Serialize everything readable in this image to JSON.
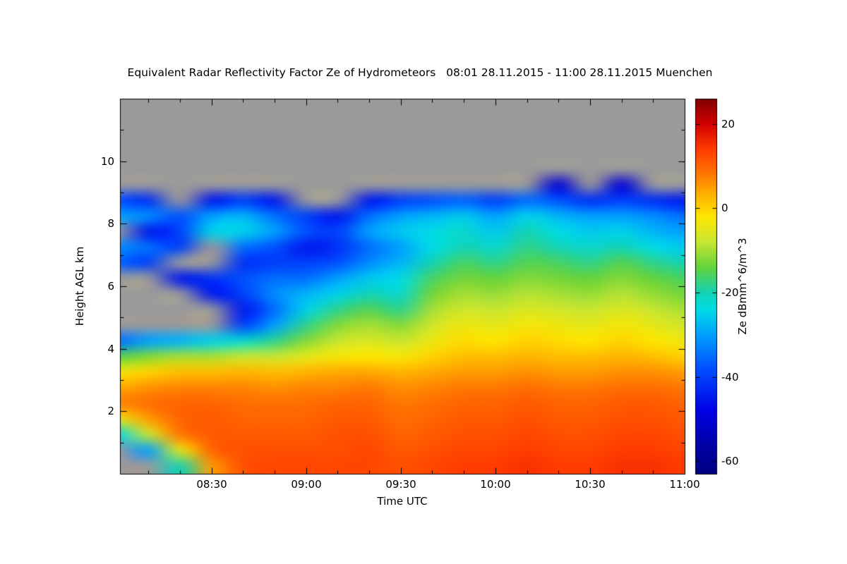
{
  "chart_data": {
    "type": "heatmap",
    "title": "Equivalent Radar Reflectivity Factor Ze of Hydrometeors   08:01 28.11.2015 - 11:00 28.11.2015 Muenchen",
    "xlabel": "Time UTC",
    "ylabel": "Height AGL km",
    "x_ticks": [
      "08:30",
      "09:00",
      "09:30",
      "10:00",
      "10:30",
      "11:00"
    ],
    "x_tick_minutes": [
      30,
      60,
      90,
      120,
      150,
      180
    ],
    "x_range_minutes": [
      1,
      180
    ],
    "y_ticks": [
      2,
      4,
      6,
      8,
      10
    ],
    "y_range_km": [
      0,
      12
    ],
    "grid": "off",
    "no_data_color": "#9a9a9a",
    "time_minutes": [
      0,
      10,
      20,
      30,
      40,
      50,
      60,
      70,
      80,
      90,
      100,
      110,
      120,
      130,
      140,
      150,
      160,
      170,
      180
    ],
    "heights_km": [
      11.75,
      11.25,
      10.75,
      10.25,
      9.75,
      9.25,
      8.75,
      8.25,
      7.75,
      7.25,
      6.75,
      6.25,
      5.75,
      5.25,
      4.75,
      4.25,
      3.75,
      3.25,
      2.75,
      2.25,
      1.75,
      1.25,
      0.75,
      0.25
    ],
    "values_dbz": [
      [
        null,
        null,
        null,
        null,
        null,
        null,
        null,
        null,
        null,
        null,
        null,
        null,
        null,
        null,
        null,
        null,
        null,
        null,
        null
      ],
      [
        null,
        null,
        null,
        null,
        null,
        null,
        null,
        null,
        null,
        null,
        null,
        null,
        null,
        null,
        null,
        null,
        null,
        null,
        null
      ],
      [
        null,
        null,
        null,
        null,
        null,
        null,
        null,
        null,
        null,
        null,
        null,
        null,
        null,
        null,
        null,
        null,
        null,
        null,
        null
      ],
      [
        null,
        null,
        null,
        null,
        null,
        null,
        null,
        null,
        null,
        null,
        null,
        null,
        null,
        null,
        null,
        null,
        null,
        null,
        null
      ],
      [
        null,
        null,
        null,
        null,
        null,
        null,
        null,
        null,
        null,
        null,
        null,
        null,
        null,
        null,
        null,
        null,
        null,
        null,
        null
      ],
      [
        null,
        null,
        null,
        null,
        null,
        null,
        null,
        null,
        null,
        null,
        null,
        null,
        null,
        null,
        -50,
        null,
        -50,
        null,
        null
      ],
      [
        -38,
        -42,
        null,
        -45,
        -40,
        -45,
        null,
        null,
        -45,
        -40,
        -38,
        -36,
        -40,
        -35,
        -38,
        -42,
        -40,
        -42,
        -45
      ],
      [
        -30,
        -32,
        -38,
        -30,
        -28,
        -35,
        -40,
        -45,
        -35,
        -30,
        -28,
        -26,
        -30,
        -25,
        -28,
        -30,
        -30,
        -32,
        -35
      ],
      [
        null,
        -45,
        -40,
        -25,
        -25,
        -30,
        -38,
        -40,
        -30,
        -26,
        -24,
        -22,
        -26,
        -20,
        -24,
        -26,
        -25,
        -28,
        -30
      ],
      [
        -32,
        -35,
        -40,
        null,
        -35,
        -38,
        -45,
        -42,
        -35,
        -30,
        -24,
        -20,
        -22,
        -18,
        -20,
        -22,
        -20,
        -24,
        -26
      ],
      [
        -36,
        -40,
        null,
        null,
        -42,
        -40,
        -40,
        -38,
        -32,
        -28,
        -20,
        -16,
        -18,
        -15,
        -16,
        -18,
        -15,
        -18,
        -20
      ],
      [
        null,
        null,
        -45,
        -42,
        -38,
        -35,
        -35,
        -30,
        -26,
        -24,
        -16,
        -13,
        -14,
        -12,
        -13,
        -14,
        -12,
        -14,
        -16
      ],
      [
        null,
        null,
        null,
        -45,
        -40,
        -32,
        -28,
        -25,
        -20,
        -22,
        -13,
        -10,
        -11,
        -9,
        -10,
        -11,
        -9,
        -11,
        -13
      ],
      [
        null,
        null,
        null,
        null,
        -45,
        -35,
        -25,
        -18,
        -15,
        -18,
        -10,
        -7,
        -8,
        -6,
        -7,
        -8,
        -6,
        -8,
        -10
      ],
      [
        null,
        null,
        null,
        null,
        -40,
        -30,
        -18,
        -12,
        -10,
        -12,
        -7,
        -4,
        -5,
        -3,
        -4,
        -5,
        -3,
        -5,
        -7
      ],
      [
        -35,
        -30,
        -28,
        -25,
        -22,
        -18,
        -12,
        -8,
        -6,
        -8,
        -4,
        -1,
        -2,
        0,
        -1,
        -2,
        0,
        -2,
        -4
      ],
      [
        -15,
        -12,
        -10,
        -10,
        -8,
        -8,
        -5,
        -3,
        -2,
        -3,
        0,
        2,
        2,
        3,
        2,
        2,
        3,
        2,
        0
      ],
      [
        -3,
        0,
        2,
        2,
        3,
        2,
        3,
        4,
        4,
        3,
        4,
        5,
        5,
        6,
        5,
        5,
        6,
        6,
        5
      ],
      [
        4,
        6,
        7,
        7,
        7,
        6,
        7,
        7,
        8,
        6,
        7,
        8,
        8,
        9,
        8,
        8,
        9,
        9,
        8
      ],
      [
        7,
        9,
        10,
        10,
        9,
        9,
        9,
        10,
        10,
        8,
        9,
        10,
        10,
        11,
        10,
        10,
        11,
        11,
        10
      ],
      [
        -5,
        5,
        10,
        11,
        10,
        10,
        10,
        11,
        11,
        9,
        10,
        11,
        11,
        12,
        11,
        11,
        12,
        12,
        11
      ],
      [
        -25,
        -8,
        8,
        11,
        11,
        11,
        11,
        12,
        12,
        10,
        11,
        12,
        12,
        13,
        12,
        12,
        13,
        13,
        12
      ],
      [
        null,
        -30,
        -5,
        10,
        12,
        12,
        12,
        12,
        13,
        11,
        12,
        13,
        13,
        14,
        13,
        13,
        14,
        14,
        13
      ],
      [
        null,
        null,
        -20,
        5,
        12,
        13,
        13,
        13,
        13,
        12,
        13,
        14,
        14,
        15,
        14,
        14,
        15,
        15,
        14
      ]
    ],
    "colorbar": {
      "label": "Ze dBmm^6/m^3",
      "ticks": [
        20,
        0,
        -20,
        -40,
        -60
      ],
      "range": [
        -63,
        26
      ],
      "stops": [
        [
          -63,
          "#000082"
        ],
        [
          -56,
          "#0000a8"
        ],
        [
          -48,
          "#0000e6"
        ],
        [
          -38,
          "#0050ff"
        ],
        [
          -30,
          "#00a0ff"
        ],
        [
          -24,
          "#00dce6"
        ],
        [
          -20,
          "#14d2b4"
        ],
        [
          -14,
          "#64d23c"
        ],
        [
          -8,
          "#c8e632"
        ],
        [
          -2,
          "#ffe600"
        ],
        [
          3,
          "#ffb400"
        ],
        [
          8,
          "#ff7800"
        ],
        [
          14,
          "#ff3c00"
        ],
        [
          20,
          "#d20000"
        ],
        [
          26,
          "#7f0000"
        ]
      ]
    }
  }
}
